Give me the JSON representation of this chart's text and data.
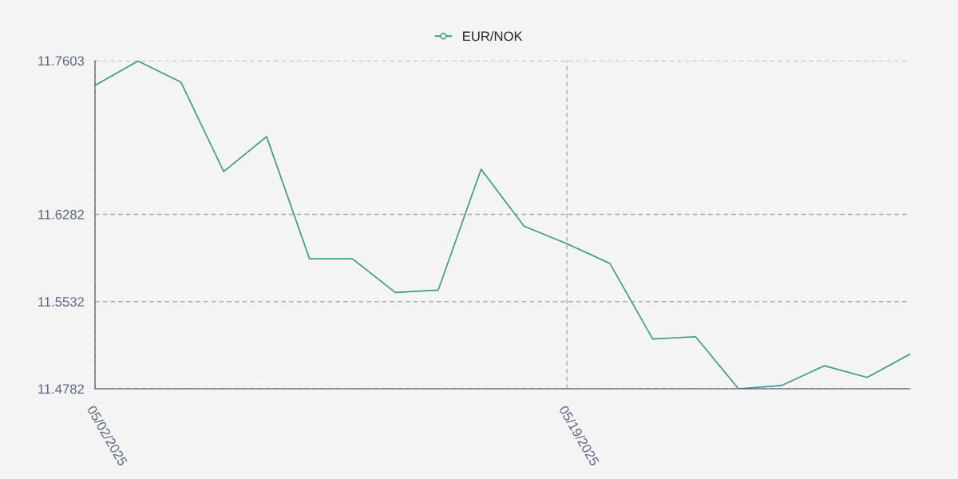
{
  "chart_data": {
    "type": "line",
    "categories": [
      "05/02/2025",
      null,
      null,
      null,
      null,
      null,
      null,
      null,
      null,
      null,
      null,
      "05/19/2025",
      null,
      null,
      null,
      null,
      null,
      null,
      null,
      null
    ],
    "series": [
      {
        "name": "EUR/NOK",
        "color": "#3d9a87",
        "values": [
          11.739,
          11.76,
          11.742,
          11.665,
          11.695,
          11.59,
          11.59,
          11.561,
          11.563,
          11.667,
          11.618,
          11.603,
          11.586,
          11.521,
          11.523,
          11.4782,
          11.481,
          11.498,
          11.488,
          11.508
        ]
      }
    ],
    "ylim": [
      11.4782,
      11.7603
    ],
    "yticks": [
      11.4782,
      11.5532,
      11.6282,
      11.7603
    ],
    "grid": true,
    "legend": "top"
  }
}
